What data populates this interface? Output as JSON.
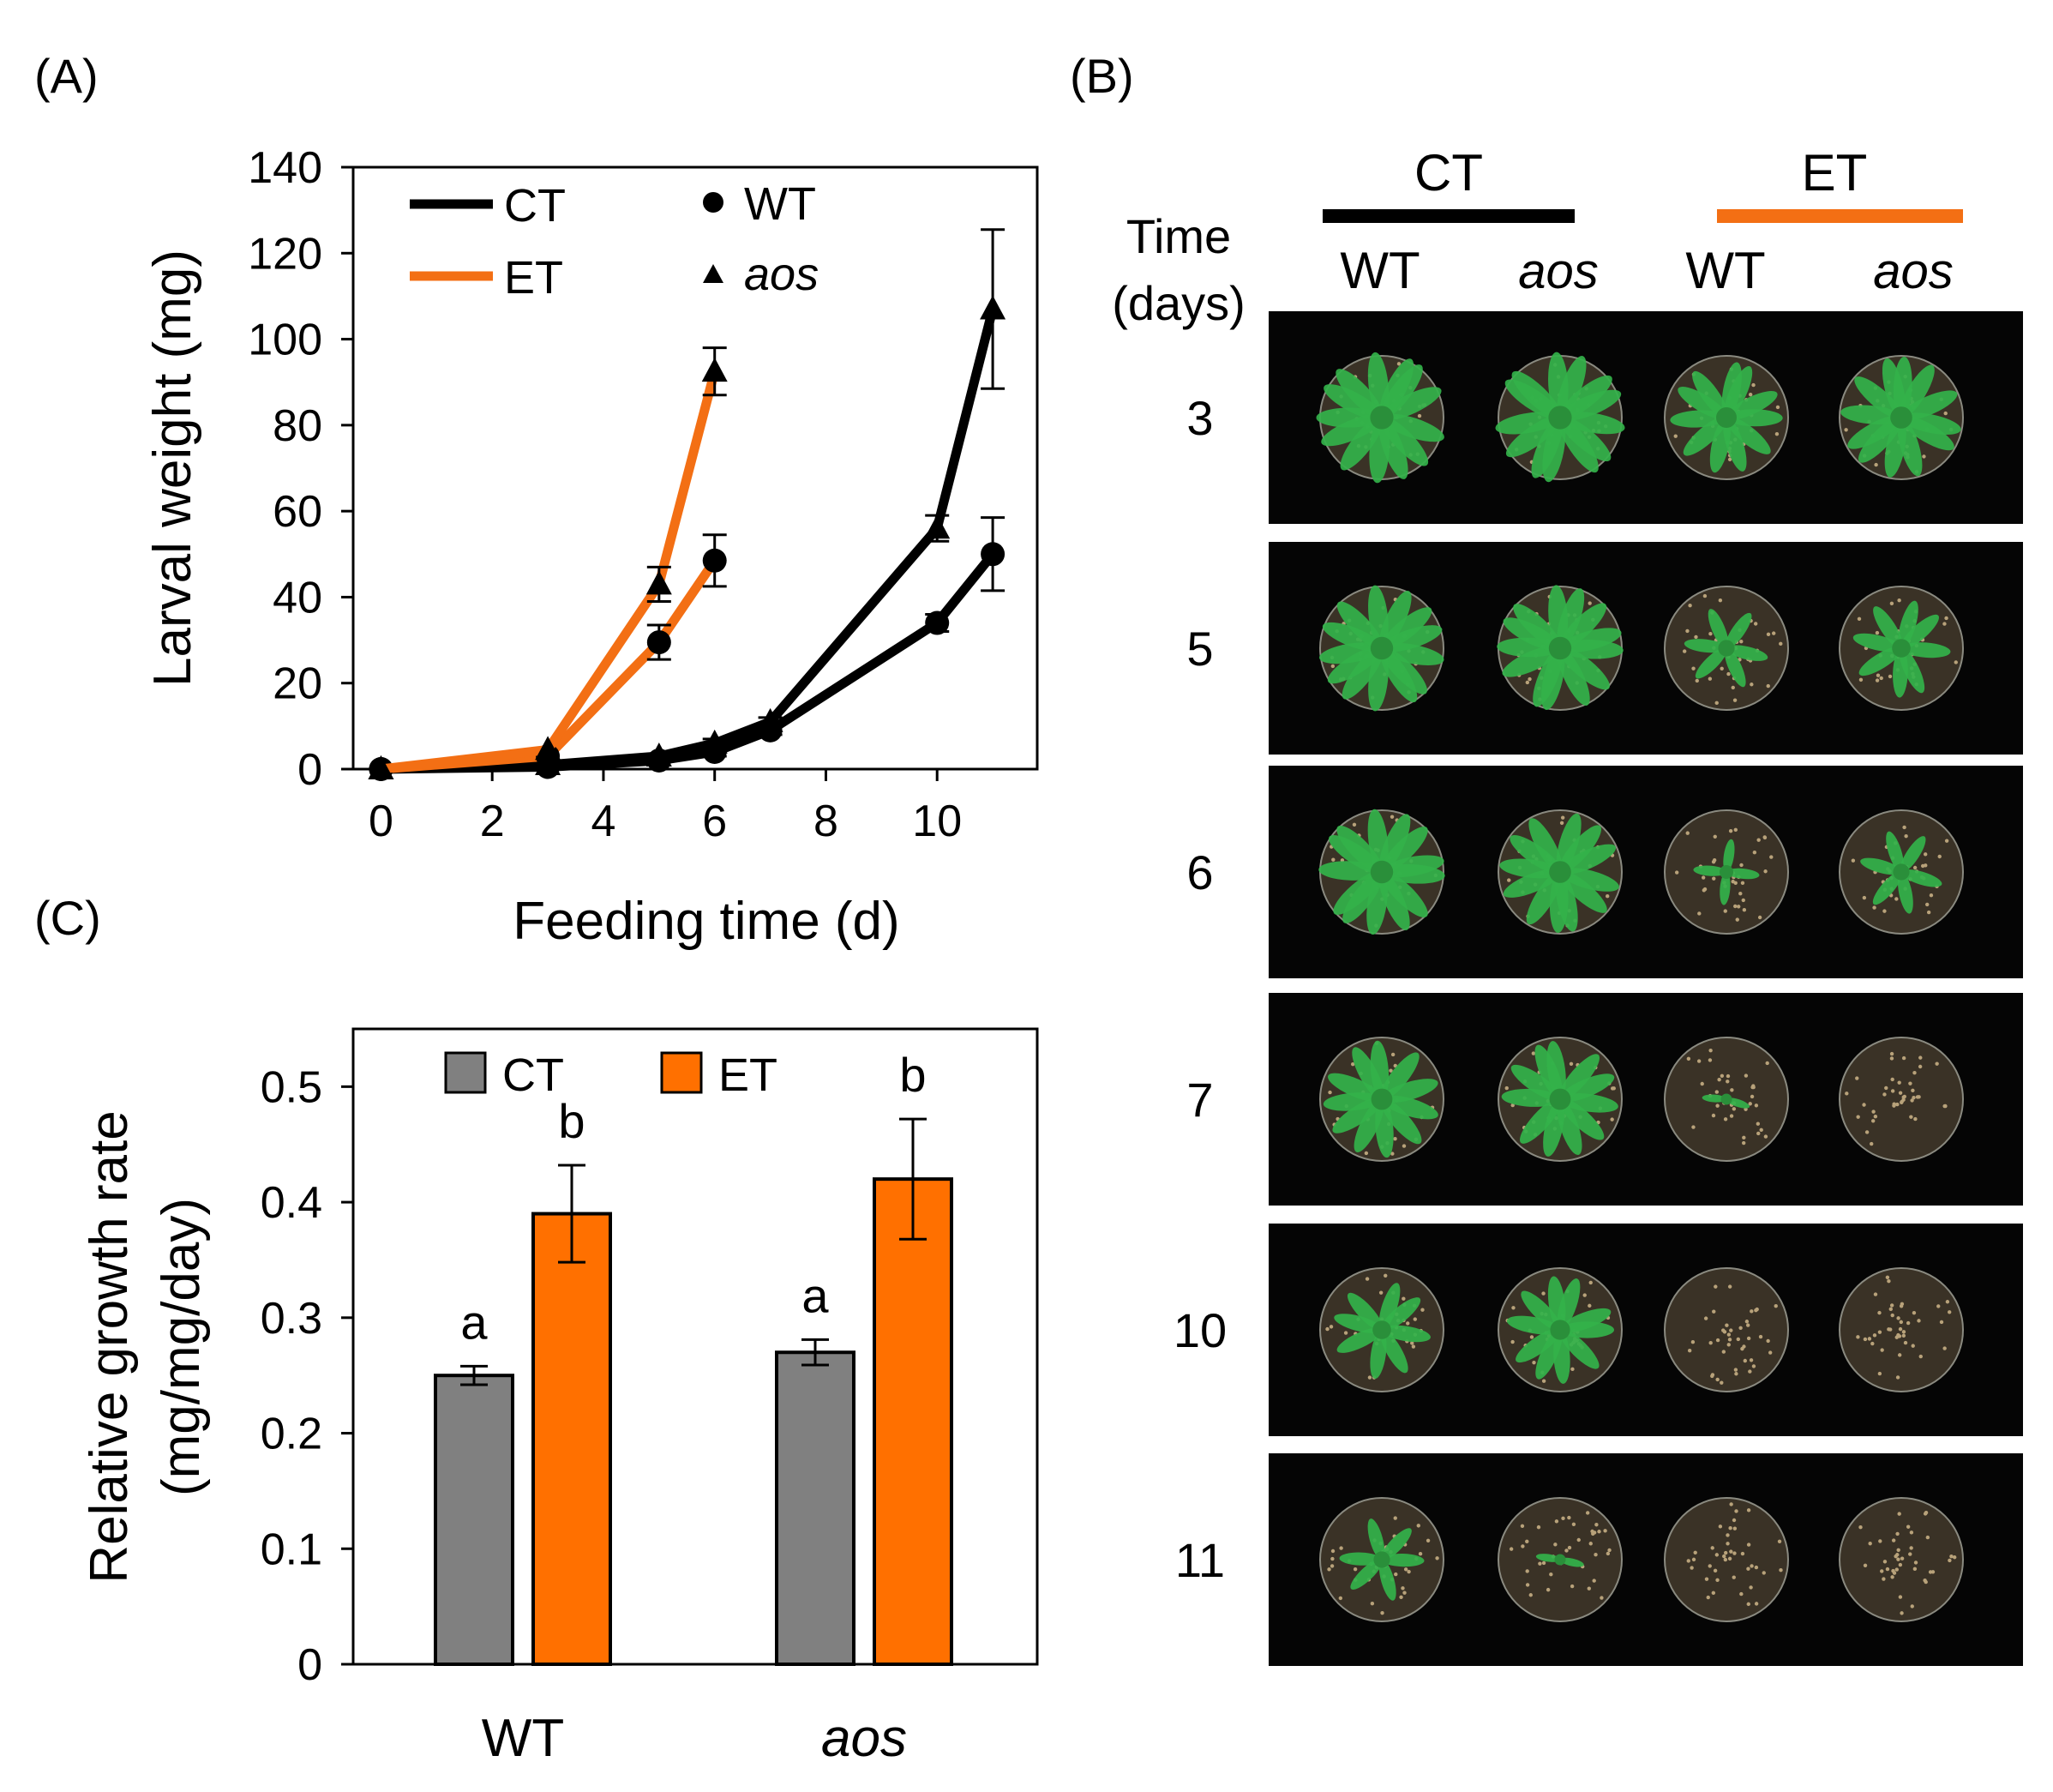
{
  "panels": {
    "A": "(A)",
    "B": "(B)",
    "C": "(C)"
  },
  "colors": {
    "CT": "#000000",
    "ET": "#f36f14",
    "bar_CT": "#808080",
    "bar_ET": "#ff7000",
    "photo_bg": "#050505",
    "plant": "#33b24a"
  },
  "chart_data": [
    {
      "id": "A",
      "type": "line",
      "xlabel": "Feeding time (d)",
      "ylabel": "Larval weight (mg)",
      "xlim": [
        -0.5,
        11.8
      ],
      "ylim": [
        0,
        140
      ],
      "xticks": [
        0,
        2,
        4,
        6,
        8,
        10
      ],
      "yticks": [
        0,
        20,
        40,
        60,
        80,
        100,
        120,
        140
      ],
      "legend": {
        "treatments": [
          {
            "key": "CT",
            "label": "CT"
          },
          {
            "key": "ET",
            "label": "ET"
          }
        ],
        "genotypes": [
          {
            "key": "WT",
            "label": "WT",
            "marker": "circle"
          },
          {
            "key": "aos",
            "label": "aos",
            "marker": "triangle"
          }
        ]
      },
      "series": [
        {
          "name": "CT WT",
          "treatment": "CT",
          "marker": "circle",
          "x": [
            0,
            3,
            5,
            6,
            7,
            10,
            11
          ],
          "y": [
            0,
            0.5,
            2,
            4,
            9,
            34,
            50
          ],
          "err": [
            0,
            0,
            0,
            1,
            1,
            2,
            8.5
          ]
        },
        {
          "name": "CT aos",
          "treatment": "CT",
          "marker": "triangle",
          "x": [
            0,
            3,
            5,
            6,
            7,
            10,
            11
          ],
          "y": [
            0,
            1,
            3,
            6,
            11,
            56,
            107
          ],
          "err": [
            0,
            0,
            0,
            1,
            1,
            3,
            18.5
          ]
        },
        {
          "name": "ET WT",
          "treatment": "ET",
          "marker": "circle",
          "x": [
            0,
            3,
            5,
            6
          ],
          "y": [
            0,
            3,
            29.5,
            48.5
          ],
          "err": [
            0,
            0,
            4,
            6
          ]
        },
        {
          "name": "ET aos",
          "treatment": "ET",
          "marker": "triangle",
          "x": [
            0,
            3,
            5,
            6
          ],
          "y": [
            0,
            4.5,
            43,
            92.5
          ],
          "err": [
            0,
            0,
            4,
            5.5
          ]
        }
      ]
    },
    {
      "id": "C",
      "type": "bar",
      "ylabel_line1": "Relative growth rate",
      "ylabel_line2": "(mg/mg/day)",
      "ylim": [
        0,
        0.55
      ],
      "yticks": [
        "0",
        "0.1",
        "0.2",
        "0.3",
        "0.4",
        "0.5"
      ],
      "ytick_values": [
        0,
        0.1,
        0.2,
        0.3,
        0.4,
        0.5
      ],
      "categories": [
        {
          "label": "WT",
          "italic": false
        },
        {
          "label": "aos",
          "italic": true
        }
      ],
      "series": [
        {
          "name": "CT",
          "values": [
            0.25,
            0.27
          ],
          "err": [
            0.008,
            0.011
          ],
          "letters": [
            "a",
            "a"
          ]
        },
        {
          "name": "ET",
          "values": [
            0.39,
            0.42
          ],
          "err": [
            0.042,
            0.052
          ],
          "letters": [
            "b",
            "b"
          ]
        }
      ]
    }
  ],
  "photo_panel": {
    "time_label_line1": "Time",
    "time_label_line2": "(days)",
    "groups": [
      {
        "label": "CT",
        "color": "#000000"
      },
      {
        "label": "ET",
        "color": "#f36f14"
      }
    ],
    "columns": [
      {
        "label": "WT",
        "italic": false
      },
      {
        "label": "aos",
        "italic": true
      },
      {
        "label": "WT",
        "italic": false
      },
      {
        "label": "aos",
        "italic": true
      }
    ],
    "days": [
      "3",
      "5",
      "6",
      "7",
      "10",
      "11"
    ],
    "plant_cover": [
      [
        0.95,
        0.95,
        0.75,
        0.85
      ],
      [
        0.9,
        0.9,
        0.45,
        0.6
      ],
      [
        0.9,
        0.85,
        0.25,
        0.45
      ],
      [
        0.8,
        0.8,
        0.06,
        0.0
      ],
      [
        0.6,
        0.7,
        0.0,
        0.0
      ],
      [
        0.45,
        0.06,
        0.0,
        0.0
      ]
    ]
  }
}
